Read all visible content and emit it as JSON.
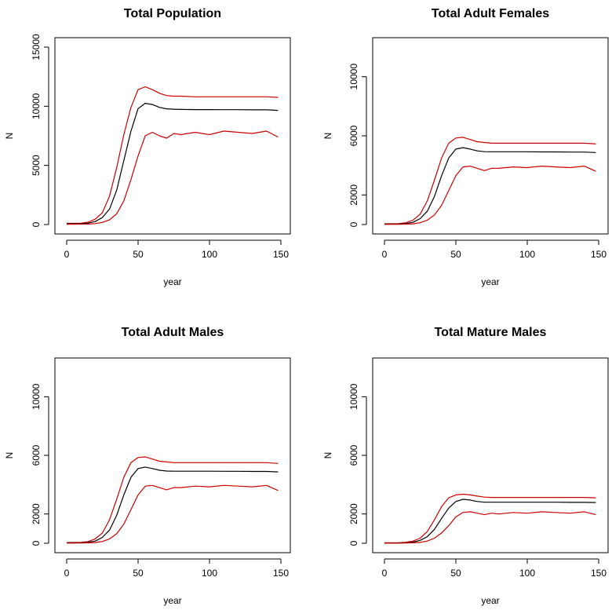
{
  "figure": {
    "background": "#ffffff"
  },
  "chart_data": [
    {
      "type": "line",
      "title": "Total Population",
      "xlabel": "year",
      "ylabel": "N",
      "xlim": [
        0,
        150
      ],
      "ylim": [
        0,
        15000
      ],
      "xticks": [
        "0",
        "50",
        "100",
        "150"
      ],
      "yticks": [
        "0",
        "5000",
        "10000",
        "15000"
      ],
      "grid": false,
      "legend": "none",
      "x": [
        0,
        10,
        15,
        20,
        25,
        30,
        35,
        40,
        45,
        50,
        55,
        60,
        65,
        70,
        75,
        80,
        90,
        100,
        110,
        120,
        130,
        140,
        148
      ],
      "series": [
        {
          "color": "#cc0000",
          "values": [
            100,
            110,
            200,
            450,
            1000,
            2400,
            4800,
            7600,
            9900,
            11400,
            11650,
            11400,
            11100,
            10900,
            10850,
            10850,
            10800,
            10800,
            10800,
            10800,
            10800,
            10800,
            10750
          ]
        },
        {
          "color": "#000000",
          "values": [
            60,
            70,
            120,
            250,
            600,
            1300,
            2900,
            5400,
            7900,
            9800,
            10250,
            10150,
            9900,
            9780,
            9750,
            9730,
            9720,
            9720,
            9710,
            9710,
            9700,
            9700,
            9650
          ]
        },
        {
          "color": "#cc0000",
          "values": [
            20,
            30,
            40,
            80,
            180,
            400,
            900,
            2000,
            3800,
            5800,
            7500,
            7800,
            7500,
            7300,
            7700,
            7600,
            7800,
            7600,
            7900,
            7800,
            7700,
            7900,
            7400
          ]
        }
      ]
    },
    {
      "type": "line",
      "title": "Total Adult Females",
      "xlabel": "year",
      "ylabel": "N",
      "xlim": [
        0,
        150
      ],
      "ylim": [
        0,
        12000
      ],
      "xticks": [
        "0",
        "50",
        "100",
        "150"
      ],
      "yticks": [
        "0",
        "2000",
        "6000",
        "10000"
      ],
      "ytick_values": [
        0,
        2000,
        6000,
        10000
      ],
      "grid": false,
      "legend": "none",
      "x": [
        0,
        10,
        15,
        20,
        25,
        30,
        35,
        40,
        45,
        50,
        55,
        60,
        65,
        70,
        75,
        80,
        90,
        100,
        110,
        120,
        130,
        140,
        148
      ],
      "series": [
        {
          "color": "#cc0000",
          "values": [
            50,
            60,
            120,
            300,
            700,
            1600,
            3000,
            4500,
            5500,
            5850,
            5900,
            5750,
            5600,
            5550,
            5500,
            5500,
            5500,
            5500,
            5500,
            5500,
            5500,
            5500,
            5450
          ]
        },
        {
          "color": "#000000",
          "values": [
            30,
            40,
            70,
            150,
            400,
            900,
            1900,
            3300,
            4500,
            5100,
            5200,
            5100,
            4980,
            4930,
            4920,
            4920,
            4920,
            4920,
            4910,
            4910,
            4900,
            4900,
            4870
          ]
        },
        {
          "color": "#cc0000",
          "values": [
            10,
            15,
            25,
            50,
            120,
            300,
            650,
            1300,
            2300,
            3300,
            3900,
            3950,
            3800,
            3650,
            3800,
            3800,
            3900,
            3850,
            3950,
            3900,
            3850,
            3950,
            3600
          ]
        }
      ]
    },
    {
      "type": "line",
      "title": "Total Adult Males",
      "xlabel": "year",
      "ylabel": "N",
      "xlim": [
        0,
        150
      ],
      "ylim": [
        0,
        12000
      ],
      "xticks": [
        "0",
        "50",
        "100",
        "150"
      ],
      "yticks": [
        "0",
        "2000",
        "6000",
        "10000"
      ],
      "ytick_values": [
        0,
        2000,
        6000,
        10000
      ],
      "grid": false,
      "legend": "none",
      "x": [
        0,
        10,
        15,
        20,
        25,
        30,
        35,
        40,
        45,
        50,
        55,
        60,
        65,
        70,
        75,
        80,
        90,
        100,
        110,
        120,
        130,
        140,
        148
      ],
      "series": [
        {
          "color": "#cc0000",
          "values": [
            50,
            60,
            120,
            300,
            700,
            1600,
            3000,
            4500,
            5500,
            5850,
            5900,
            5750,
            5600,
            5550,
            5500,
            5500,
            5500,
            5500,
            5500,
            5500,
            5500,
            5500,
            5450
          ]
        },
        {
          "color": "#000000",
          "values": [
            30,
            40,
            70,
            150,
            400,
            900,
            1900,
            3300,
            4500,
            5100,
            5200,
            5100,
            4980,
            4930,
            4920,
            4920,
            4920,
            4920,
            4910,
            4910,
            4900,
            4900,
            4870
          ]
        },
        {
          "color": "#cc0000",
          "values": [
            10,
            15,
            25,
            50,
            120,
            300,
            650,
            1300,
            2300,
            3300,
            3900,
            3950,
            3800,
            3650,
            3800,
            3800,
            3900,
            3850,
            3950,
            3900,
            3850,
            3950,
            3600
          ]
        }
      ]
    },
    {
      "type": "line",
      "title": "Total Mature Males",
      "xlabel": "year",
      "ylabel": "N",
      "xlim": [
        0,
        150
      ],
      "ylim": [
        0,
        12000
      ],
      "xticks": [
        "0",
        "50",
        "100",
        "150"
      ],
      "yticks": [
        "0",
        "2000",
        "6000",
        "10000"
      ],
      "ytick_values": [
        0,
        2000,
        6000,
        10000
      ],
      "grid": false,
      "legend": "none",
      "x": [
        0,
        10,
        15,
        20,
        25,
        30,
        35,
        40,
        45,
        50,
        55,
        60,
        65,
        70,
        75,
        80,
        90,
        100,
        110,
        120,
        130,
        140,
        148
      ],
      "series": [
        {
          "color": "#cc0000",
          "values": [
            30,
            40,
            70,
            150,
            350,
            800,
            1600,
            2500,
            3100,
            3300,
            3350,
            3300,
            3220,
            3150,
            3130,
            3130,
            3130,
            3130,
            3130,
            3130,
            3130,
            3130,
            3100
          ]
        },
        {
          "color": "#000000",
          "values": [
            15,
            20,
            40,
            80,
            200,
            450,
            950,
            1700,
            2400,
            2850,
            3000,
            2950,
            2850,
            2800,
            2800,
            2800,
            2800,
            2800,
            2800,
            2800,
            2790,
            2790,
            2780
          ]
        },
        {
          "color": "#cc0000",
          "values": [
            5,
            10,
            15,
            30,
            60,
            150,
            350,
            700,
            1200,
            1800,
            2100,
            2150,
            2050,
            1950,
            2050,
            2000,
            2100,
            2050,
            2150,
            2100,
            2050,
            2150,
            1950
          ]
        }
      ]
    }
  ]
}
